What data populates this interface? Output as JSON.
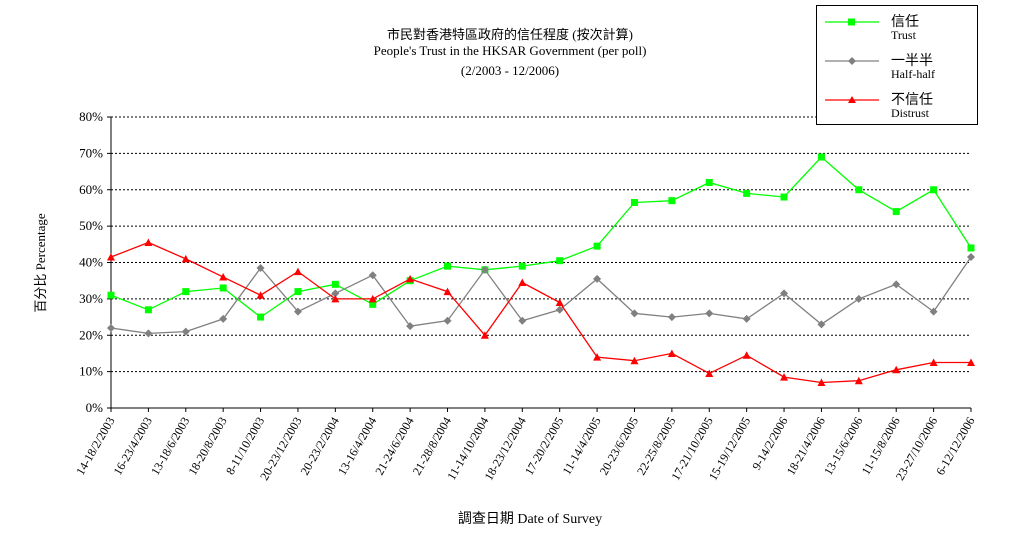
{
  "chart_data": {
    "type": "line",
    "title": "市民對香港特區政府的信任程度 (按次計算)",
    "subtitle": "People's Trust in the HKSAR Government (per poll)",
    "period": "(2/2003 -  12/2006)",
    "xlabel": "調查日期 Date of Survey",
    "ylabel": "百分比 Percentage",
    "ylim": [
      0,
      80
    ],
    "yticks": [
      "0%",
      "10%",
      "20%",
      "30%",
      "40%",
      "50%",
      "60%",
      "70%",
      "80%"
    ],
    "grid": true,
    "legend_position": "top-right",
    "categories": [
      "14-18/2/2003",
      "16-23/4/2003",
      "13-18/6/2003",
      "18-20/8/2003",
      "8-11/10/2003",
      "20-23/12/2003",
      "20-23/2/2004",
      "13-16/4/2004",
      "21-24/6/2004",
      "21-28/8/2004",
      "11-14/10/2004",
      "18-23/12/2004",
      "17-20/2/2005",
      "11-14/4/2005",
      "20-23/6/2005",
      "22-25/8/2005",
      "17-21/10/2005",
      "15-19/12/2005",
      "9-14/2/2006",
      "18-21/4/2006",
      "13-15/6/2006",
      "11-15/8/2006",
      "23-27/10/2006",
      "6-12/12/2006"
    ],
    "series": [
      {
        "name": "信任",
        "name_en": "Trust",
        "color": "#00ff00",
        "marker": "square",
        "values": [
          31,
          27,
          32,
          33,
          25,
          32,
          34,
          28.5,
          35,
          39,
          38,
          39,
          40.5,
          44.5,
          56.5,
          57,
          62,
          59,
          58,
          69,
          60,
          54,
          60,
          44
        ]
      },
      {
        "name": "一半半",
        "name_en": "Half-half",
        "color": "#808080",
        "marker": "diamond",
        "values": [
          22,
          20.5,
          21,
          24.5,
          38.5,
          26.5,
          31.5,
          36.5,
          22.5,
          24,
          38,
          24,
          27,
          35.5,
          26,
          25,
          26,
          24.5,
          31.5,
          23,
          30,
          34,
          26.5,
          41.5
        ]
      },
      {
        "name": "不信任",
        "name_en": "Distrust",
        "color": "#ff0000",
        "marker": "triangle",
        "values": [
          41.5,
          45.5,
          41,
          36,
          31,
          37.5,
          30,
          30,
          35.5,
          32,
          20,
          34.5,
          29,
          14,
          13,
          15,
          9.5,
          14.5,
          8.5,
          7,
          7.5,
          10.5,
          12.5,
          12.5
        ]
      }
    ]
  }
}
